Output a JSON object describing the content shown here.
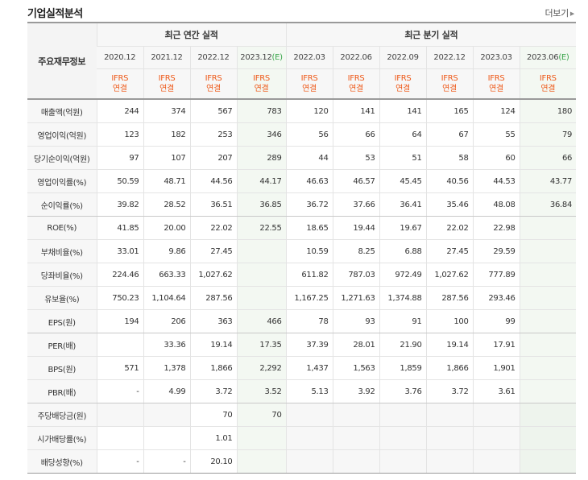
{
  "title": "기업실적분석",
  "more_link": "더보기",
  "corner_label": "주요재무정보",
  "annual_label": "최근 연간 실적",
  "quarterly_label": "최근 분기 실적",
  "colors": {
    "accent_orange": "#ee5a1a",
    "estimate_bg": "#f3f8f2",
    "estimate_mark": "#3aa54b"
  },
  "periods": [
    {
      "label": "2020.12",
      "estimate": false,
      "standard": "IFRS",
      "basis": "연결"
    },
    {
      "label": "2021.12",
      "estimate": false,
      "standard": "IFRS",
      "basis": "연결"
    },
    {
      "label": "2022.12",
      "estimate": false,
      "standard": "IFRS",
      "basis": "연결"
    },
    {
      "label": "2023.12",
      "estimate": true,
      "standard": "IFRS",
      "basis": "연결"
    },
    {
      "label": "2022.03",
      "estimate": false,
      "standard": "IFRS",
      "basis": "연결"
    },
    {
      "label": "2022.06",
      "estimate": false,
      "standard": "IFRS",
      "basis": "연결"
    },
    {
      "label": "2022.09",
      "estimate": false,
      "standard": "IFRS",
      "basis": "연결"
    },
    {
      "label": "2022.12",
      "estimate": false,
      "standard": "IFRS",
      "basis": "연결"
    },
    {
      "label": "2023.03",
      "estimate": false,
      "standard": "IFRS",
      "basis": "연결"
    },
    {
      "label": "2023.06",
      "estimate": true,
      "standard": "IFRS",
      "basis": "연결"
    }
  ],
  "estimate_mark": "(E)",
  "rows": [
    {
      "label": "매출액(억원)",
      "values": [
        "244",
        "374",
        "567",
        "783",
        "120",
        "141",
        "141",
        "165",
        "124",
        "180"
      ]
    },
    {
      "label": "영업이익(억원)",
      "values": [
        "123",
        "182",
        "253",
        "346",
        "56",
        "66",
        "64",
        "67",
        "55",
        "79"
      ]
    },
    {
      "label": "당기순이익(억원)",
      "values": [
        "97",
        "107",
        "207",
        "289",
        "44",
        "53",
        "51",
        "58",
        "60",
        "66"
      ]
    },
    {
      "label": "영업이익률(%)",
      "values": [
        "50.59",
        "48.71",
        "44.56",
        "44.17",
        "46.63",
        "46.57",
        "45.45",
        "40.56",
        "44.53",
        "43.77"
      ]
    },
    {
      "label": "순이익률(%)",
      "values": [
        "39.82",
        "28.52",
        "36.51",
        "36.85",
        "36.72",
        "37.66",
        "36.41",
        "35.46",
        "48.08",
        "36.84"
      ]
    },
    {
      "label": "ROE(%)",
      "values": [
        "41.85",
        "20.00",
        "22.02",
        "22.55",
        "18.65",
        "19.44",
        "19.67",
        "22.02",
        "22.98",
        ""
      ]
    },
    {
      "label": "부채비율(%)",
      "values": [
        "33.01",
        "9.86",
        "27.45",
        "",
        "10.59",
        "8.25",
        "6.88",
        "27.45",
        "29.59",
        ""
      ]
    },
    {
      "label": "당좌비율(%)",
      "values": [
        "224.46",
        "663.33",
        "1,027.62",
        "",
        "611.82",
        "787.03",
        "972.49",
        "1,027.62",
        "777.89",
        ""
      ]
    },
    {
      "label": "유보율(%)",
      "values": [
        "750.23",
        "1,104.64",
        "287.56",
        "",
        "1,167.25",
        "1,271.63",
        "1,374.88",
        "287.56",
        "293.46",
        ""
      ]
    },
    {
      "label": "EPS(원)",
      "values": [
        "194",
        "206",
        "363",
        "466",
        "78",
        "93",
        "91",
        "100",
        "99",
        ""
      ]
    },
    {
      "label": "PER(배)",
      "values": [
        "",
        "33.36",
        "19.14",
        "17.35",
        "37.39",
        "28.01",
        "21.90",
        "19.14",
        "17.91",
        ""
      ]
    },
    {
      "label": "BPS(원)",
      "values": [
        "571",
        "1,378",
        "1,866",
        "2,292",
        "1,437",
        "1,563",
        "1,859",
        "1,866",
        "1,901",
        ""
      ]
    },
    {
      "label": "PBR(배)",
      "values": [
        "-",
        "4.99",
        "3.72",
        "3.52",
        "5.13",
        "3.92",
        "3.76",
        "3.72",
        "3.61",
        ""
      ]
    },
    {
      "label": "주당배당금(원)",
      "values": [
        "",
        "",
        "70",
        "70",
        "",
        "",
        "",
        "",
        "",
        ""
      ]
    },
    {
      "label": "시가배당률(%)",
      "values": [
        "",
        "",
        "1.01",
        "",
        "",
        "",
        "",
        "",
        "",
        ""
      ]
    },
    {
      "label": "배당성향(%)",
      "values": [
        "-",
        "-",
        "20.10",
        "",
        "",
        "",
        "",
        "",
        "",
        ""
      ]
    }
  ]
}
